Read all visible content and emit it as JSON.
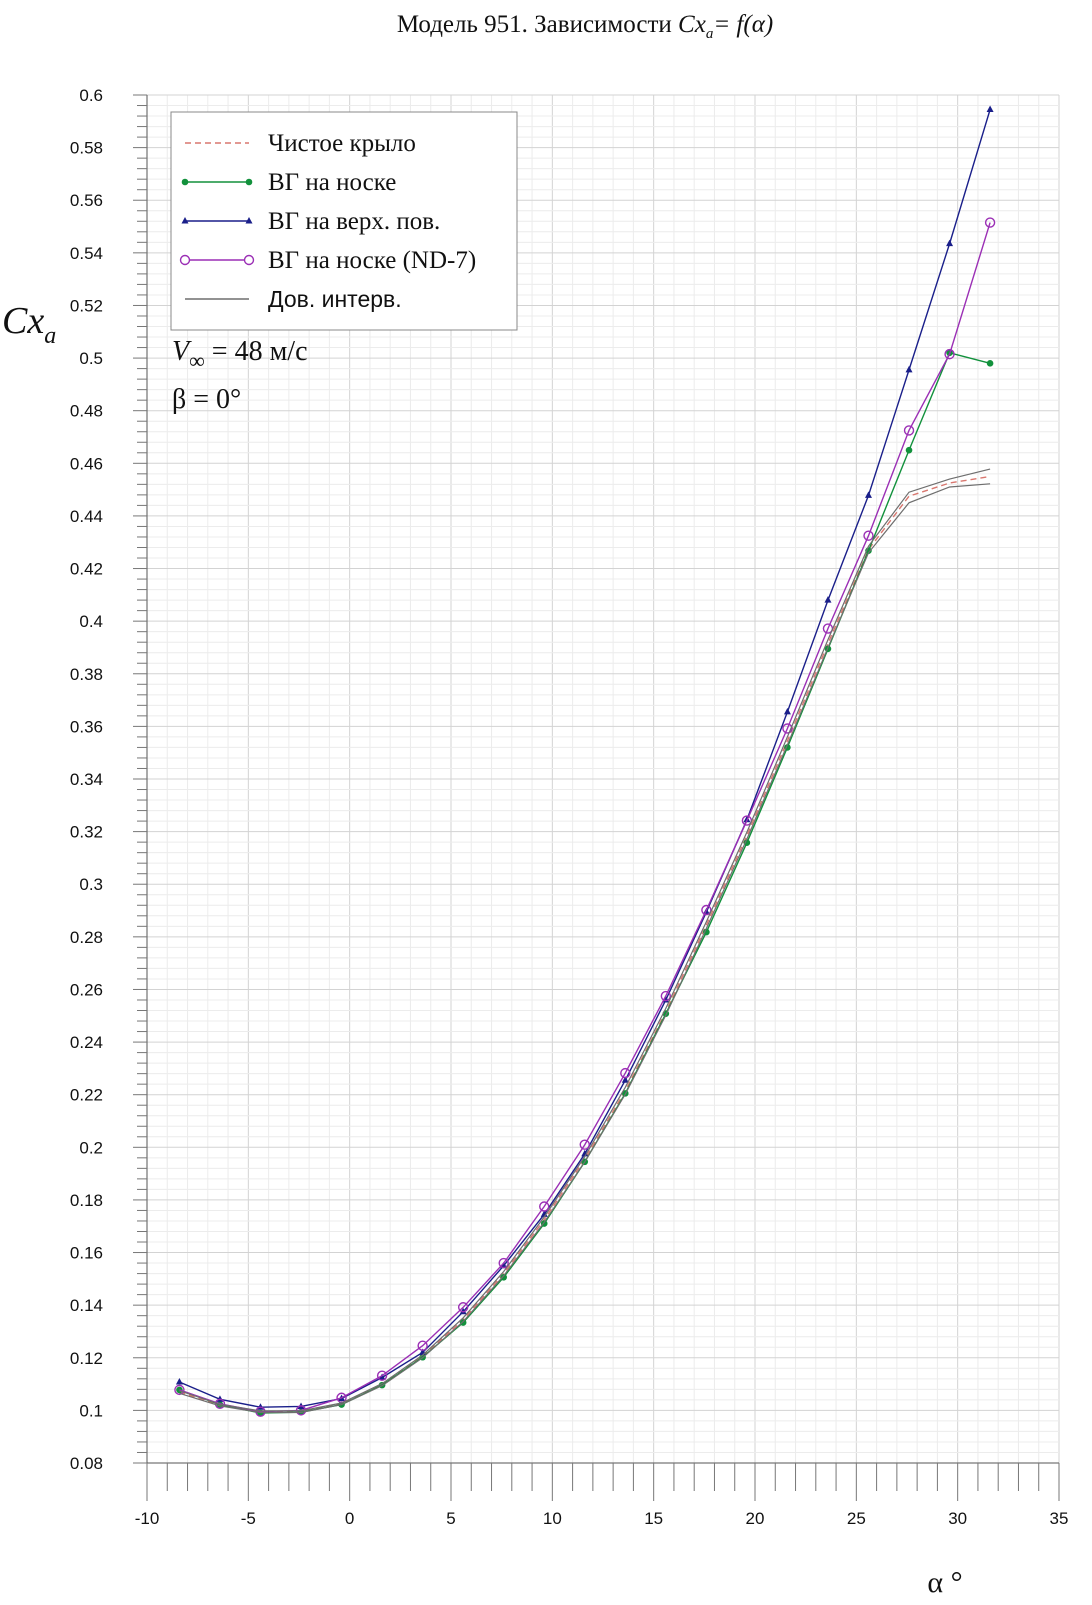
{
  "chart_data": {
    "type": "line",
    "title": "Модель 951. Зависимости ",
    "title_formula": {
      "main": "Cx",
      "sub": "a",
      "rest": "= f(α)"
    },
    "xlabel": "α °",
    "ylabel": {
      "main": "Cx",
      "sub": "a"
    },
    "xlim": [
      -10,
      35
    ],
    "ylim": [
      0.08,
      0.6
    ],
    "xticks": [
      -10,
      -5,
      0,
      5,
      10,
      15,
      20,
      25,
      30,
      35
    ],
    "yticks": [
      0.08,
      0.1,
      0.12,
      0.14,
      0.16,
      0.18,
      0.2,
      0.22,
      0.24,
      0.26,
      0.28,
      0.3,
      0.32,
      0.34,
      0.36,
      0.38,
      0.4,
      0.42,
      0.44,
      0.46,
      0.48,
      0.5,
      0.52,
      0.54,
      0.56,
      0.58,
      0.6
    ],
    "grid": true,
    "legend_position": "top-left",
    "annotations": {
      "velocity": {
        "symbol": "V",
        "sub": "∞",
        "text": " = 48 м/с"
      },
      "beta": "β = 0°"
    },
    "x": [
      -8.4,
      -6.4,
      -4.4,
      -2.4,
      -0.4,
      1.6,
      3.6,
      5.6,
      7.6,
      9.6,
      11.6,
      13.6,
      15.6,
      17.6,
      19.6,
      21.6,
      23.6,
      25.6,
      27.6,
      29.6,
      31.6
    ],
    "series": [
      {
        "name": "Чистое крыло",
        "color": "#d9776f",
        "style": "dashed",
        "marker": "none",
        "values": [
          0.107,
          0.102,
          0.0995,
          0.0995,
          0.1025,
          0.1098,
          0.1205,
          0.1345,
          0.152,
          0.1725,
          0.1955,
          0.2215,
          0.2515,
          0.2845,
          0.3185,
          0.3545,
          0.3915,
          0.4272,
          0.4475,
          0.4525,
          0.455
        ]
      },
      {
        "name": "ВГ на носке",
        "color": "#12913c",
        "style": "solid",
        "marker": "dot",
        "values": [
          0.1078,
          0.1022,
          0.099,
          0.0993,
          0.1022,
          0.1096,
          0.1202,
          0.1334,
          0.1506,
          0.171,
          0.1945,
          0.2205,
          0.2508,
          0.2818,
          0.3158,
          0.352,
          0.3895,
          0.4268,
          0.465,
          0.502,
          0.498
        ]
      },
      {
        "name": "ВГ на верх. пов.",
        "color": "#1a1f8a",
        "style": "solid",
        "marker": "triangle",
        "values": [
          0.1108,
          0.1042,
          0.1012,
          0.1015,
          0.1045,
          0.1125,
          0.122,
          0.1375,
          0.155,
          0.1745,
          0.1975,
          0.2255,
          0.256,
          0.2895,
          0.3245,
          0.3655,
          0.408,
          0.4478,
          0.4955,
          0.5435,
          0.5945
        ]
      },
      {
        "name": "ВГ на носке (ND-7)",
        "color": "#9b2fb5",
        "style": "solid",
        "marker": "circle",
        "values": [
          0.1078,
          0.1025,
          0.0995,
          0.1,
          0.1048,
          0.1132,
          0.1246,
          0.1392,
          0.156,
          0.1775,
          0.201,
          0.2282,
          0.2575,
          0.2902,
          0.3242,
          0.3592,
          0.3972,
          0.4325,
          0.4725,
          0.5015,
          0.5515
        ]
      },
      {
        "name": "Дов. интерв.",
        "color": "#6e6e6e",
        "style": "solid",
        "marker": "none",
        "bands": [
          [
            0.1075,
            0.1023,
            0.0998,
            0.0998,
            0.1028,
            0.1102,
            0.121,
            0.1352,
            0.1528,
            0.1735,
            0.1965,
            0.2228,
            0.2528,
            0.2858,
            0.3198,
            0.356,
            0.393,
            0.4285,
            0.449,
            0.454,
            0.4578
          ],
          [
            0.1065,
            0.1017,
            0.0992,
            0.0992,
            0.1022,
            0.1094,
            0.12,
            0.1338,
            0.1512,
            0.1715,
            0.1945,
            0.2202,
            0.2502,
            0.2832,
            0.3172,
            0.353,
            0.39,
            0.426,
            0.445,
            0.451,
            0.4522
          ]
        ]
      }
    ]
  }
}
